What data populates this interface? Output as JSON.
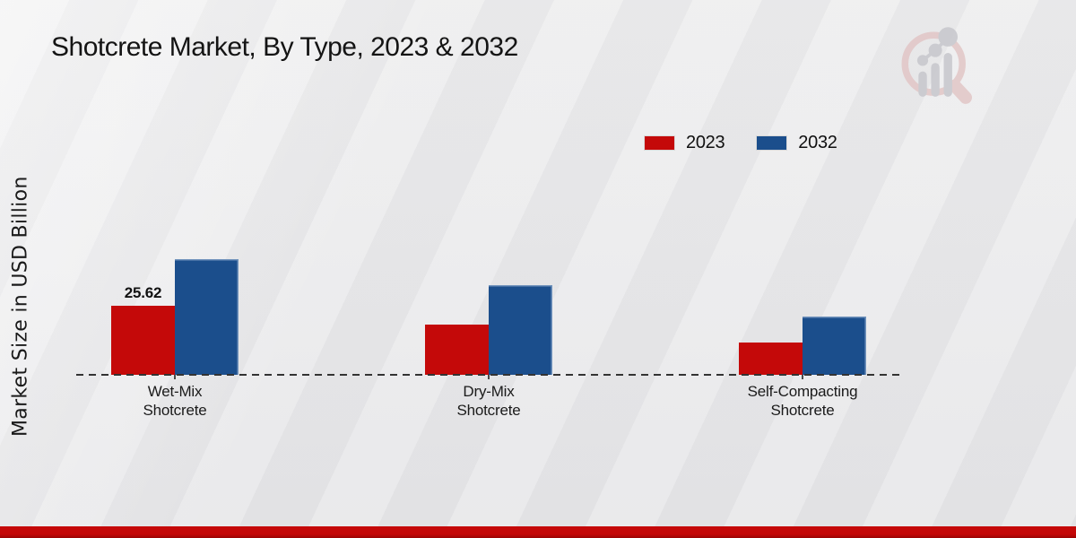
{
  "title": "Shotcrete Market, By Type, 2023 & 2032",
  "y_axis_label": "Market Size in USD Billion",
  "legend": {
    "position": "top-right",
    "items": [
      {
        "label": "2023",
        "color": "#c40909"
      },
      {
        "label": "2032",
        "color": "#1b4e8c"
      }
    ]
  },
  "colors": {
    "series_2023": "#c40909",
    "series_2032": "#1b4e8c",
    "accent_bottom_bar": "#c50808",
    "baseline": "#333333",
    "background": "#eaeaec",
    "text": "#141414"
  },
  "watermark_icon": "magnifier-bar-chart-logo",
  "chart_data": {
    "type": "bar",
    "title": "Shotcrete Market, By Type, 2023 & 2032",
    "xlabel": "",
    "ylabel": "Market Size in USD Billion",
    "categories": [
      "Wet-Mix Shotcrete",
      "Dry-Mix Shotcrete",
      "Self-Compacting Shotcrete"
    ],
    "category_label_lines": [
      [
        "Wet-Mix",
        "Shotcrete"
      ],
      [
        "Dry-Mix",
        "Shotcrete"
      ],
      [
        "Self-Compacting",
        "Shotcrete"
      ]
    ],
    "series": [
      {
        "name": "2023",
        "color": "#c40909",
        "values": [
          25.62,
          18.6,
          12.0
        ]
      },
      {
        "name": "2032",
        "color": "#1b4e8c",
        "values": [
          42.9,
          33.2,
          21.6
        ]
      }
    ],
    "annotations": [
      {
        "series": "2023",
        "category": "Wet-Mix Shotcrete",
        "text": "25.62"
      }
    ],
    "ylim": [
      0,
      45
    ],
    "grid": false,
    "y_ticks_visible": false,
    "legend_position": "top-right",
    "baseline_style": "dashed"
  }
}
